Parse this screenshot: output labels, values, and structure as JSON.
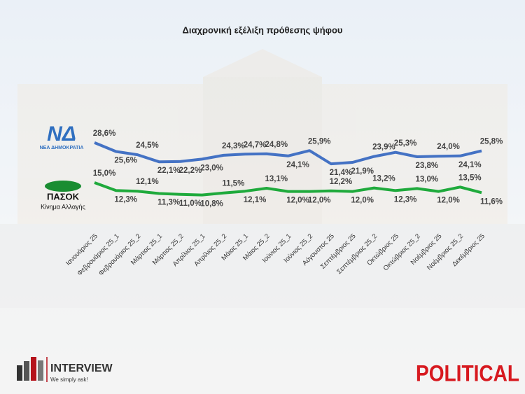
{
  "chart_data": {
    "type": "line",
    "title": "Διαχρονική εξέλιξη πρόθεσης ψήφου",
    "categories": [
      "Ιανουάριος 25",
      "Φεβρουάριος 25_1",
      "Φεβρουάριος 25_2",
      "Μάρτιος 25_1",
      "Μάρτιος 25_2",
      "Απρίλιος 25_1",
      "Απρίλιος 25_2",
      "Μάιος 25_1",
      "Μάιος 25_2",
      "Ιούνιος 25_1",
      "Ιούνιος 25_2",
      "Αύγουστος 25",
      "Σεπτέμβριος 25",
      "Σεπτέμβριος 25_2",
      "Οκτώβριος 25",
      "Οκτώβριος 25_2",
      "Νοέμβριος 25",
      "Νοέμβριος 25_2",
      "Δεκέμβριος 25"
    ],
    "series": [
      {
        "name": "ΝΕΑ ΔΗΜΟΚΡΑΤΙΑ",
        "logo": "ΝΔ",
        "color": "#4472c4",
        "values": [
          28.6,
          25.6,
          24.5,
          22.1,
          22.2,
          23.0,
          24.3,
          24.7,
          24.8,
          24.1,
          25.9,
          21.4,
          21.9,
          23.9,
          25.3,
          23.8,
          24.0,
          24.1,
          25.8
        ],
        "value_labels": [
          "28,6%",
          "25,6%",
          "24,5%",
          "22,1%",
          "22,2%",
          "23,0%",
          "24,3%",
          "24,7%",
          "24,8%",
          "24,1%",
          "25,9%",
          "21,4%",
          "21,9%",
          "23,9%",
          "25,3%",
          "23,8%",
          "24,0%",
          "24,1%",
          "25,8%"
        ]
      },
      {
        "name": "ΠΑΣΟΚ",
        "tagline": "Κίνημα Αλλαγής",
        "color": "#1faa3c",
        "values": [
          15.0,
          12.3,
          12.1,
          11.3,
          11.0,
          10.8,
          11.5,
          12.1,
          13.1,
          12.0,
          12.0,
          12.2,
          12.0,
          13.2,
          12.3,
          13.0,
          12.0,
          13.5,
          11.6
        ],
        "value_labels": [
          "15,0%",
          "12,3%",
          "12,1%",
          "11,3%",
          "11,0%",
          "10,8%",
          "11,5%",
          "12,1%",
          "13,1%",
          "12,0%",
          "12,0%",
          "12,2%",
          "12,0%",
          "13,2%",
          "12,3%",
          "13,0%",
          "12,0%",
          "13,5%",
          "11,6%"
        ]
      }
    ],
    "ylim": [
      0,
      35
    ]
  },
  "footer": {
    "brand": "INTERVIEW",
    "slogan": "We simply ask!",
    "partner": "POLITICAL"
  }
}
